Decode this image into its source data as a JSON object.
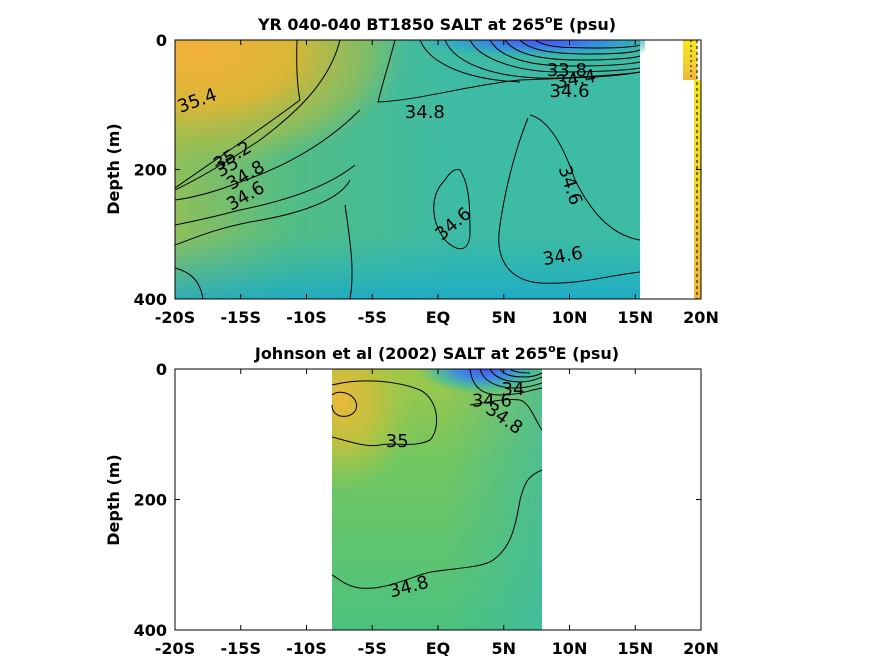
{
  "chart_data": [
    {
      "type": "heatmap",
      "title": "YR 040-040 BT1850 SALT at 265",
      "title_sup": "o",
      "title_tail": "E (psu)",
      "ylabel": "Depth (m)",
      "x_ticks": [
        "-20S",
        "-15S",
        "-10S",
        "-5S",
        "EQ",
        "5N",
        "10N",
        "15N",
        "20N"
      ],
      "x_tick_values": [
        -20,
        -15,
        -10,
        -5,
        0,
        5,
        10,
        15,
        20
      ],
      "y_ticks": [
        "0",
        "200",
        "400"
      ],
      "y_tick_values": [
        0,
        200,
        400
      ],
      "xlim": [
        -20,
        20
      ],
      "ylim": [
        0,
        400
      ],
      "y_reversed": true,
      "x_data_range": [
        -20,
        15.5
      ],
      "contour_labels": [
        {
          "text": "35.4",
          "x": -18.3,
          "y": 95,
          "angle": -20
        },
        {
          "text": "34.8",
          "x": -1.0,
          "y": 113,
          "angle": 0
        },
        {
          "text": "33.8",
          "x": 9.8,
          "y": 48,
          "angle": 0
        },
        {
          "text": "34.4",
          "x": 10.5,
          "y": 62,
          "angle": -10
        },
        {
          "text": "34.6",
          "x": 10.0,
          "y": 80,
          "angle": 0
        },
        {
          "text": "35.2",
          "x": -15.6,
          "y": 180,
          "angle": -30
        },
        {
          "text": "35",
          "x": -16.0,
          "y": 197,
          "angle": -30
        },
        {
          "text": "34.8",
          "x": -14.6,
          "y": 210,
          "angle": -30
        },
        {
          "text": "34.6",
          "x": -14.6,
          "y": 242,
          "angle": -30
        },
        {
          "text": "34.6",
          "x": 1.2,
          "y": 285,
          "angle": -40
        },
        {
          "text": "34.6",
          "x": 10.0,
          "y": 225,
          "angle": 72
        },
        {
          "text": "34.6",
          "x": 9.5,
          "y": 335,
          "angle": -10
        }
      ]
    },
    {
      "type": "heatmap",
      "title": "Johnson et al (2002) SALT at 265",
      "title_sup": "o",
      "title_tail": "E (psu)",
      "ylabel": "Depth (m)",
      "x_ticks": [
        "-20S",
        "-15S",
        "-10S",
        "-5S",
        "EQ",
        "5N",
        "10N",
        "15N",
        "20N"
      ],
      "x_tick_values": [
        -20,
        -15,
        -10,
        -5,
        0,
        5,
        10,
        15,
        20
      ],
      "y_ticks": [
        "0",
        "200",
        "400"
      ],
      "y_tick_values": [
        0,
        200,
        400
      ],
      "xlim": [
        -20,
        20
      ],
      "ylim": [
        0,
        400
      ],
      "y_reversed": true,
      "x_data_range": [
        -8,
        8
      ],
      "contour_labels": [
        {
          "text": "34",
          "x": 5.7,
          "y": 32,
          "angle": 0
        },
        {
          "text": "34.6",
          "x": 4.1,
          "y": 50,
          "angle": 0
        },
        {
          "text": "34.8",
          "x": 5.0,
          "y": 77,
          "angle": 35
        },
        {
          "text": "35",
          "x": -3.1,
          "y": 112,
          "angle": 0
        },
        {
          "text": "34.8",
          "x": -2.2,
          "y": 335,
          "angle": -15
        }
      ]
    }
  ]
}
